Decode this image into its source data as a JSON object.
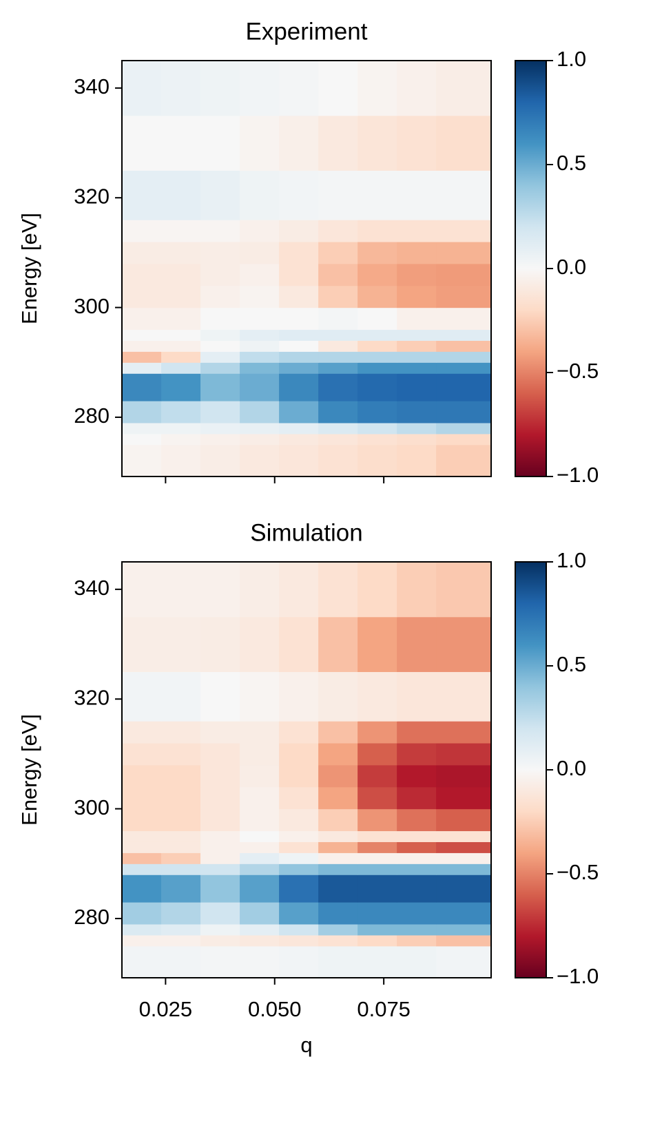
{
  "chart_data": [
    {
      "type": "heatmap",
      "title": "Experiment",
      "ylabel": "Energy [eV]",
      "xlim": [
        0.015,
        0.0996
      ],
      "ylim": [
        269.2,
        345
      ],
      "xticks": [
        0.025,
        0.05,
        0.075
      ],
      "show_xticklabels": false,
      "yticks": [
        280,
        300,
        320,
        340
      ],
      "x_bins": [
        0.015,
        0.024,
        0.033,
        0.042,
        0.051,
        0.06,
        0.069,
        0.078,
        0.087,
        0.0996
      ],
      "y_bins": [
        269.2,
        275,
        277,
        279,
        283,
        288,
        290,
        292,
        294,
        296,
        300,
        304,
        308,
        312,
        316,
        325,
        335,
        345
      ],
      "values": [
        [
          -0.03,
          -0.05,
          -0.07,
          -0.1,
          -0.12,
          -0.15,
          -0.18,
          -0.2,
          -0.25
        ],
        [
          0,
          -0.03,
          -0.05,
          -0.07,
          -0.1,
          -0.12,
          -0.15,
          -0.17,
          -0.2
        ],
        [
          0.05,
          0.05,
          0.07,
          0.08,
          0.1,
          0.15,
          0.2,
          0.25,
          0.3
        ],
        [
          0.3,
          0.25,
          0.2,
          0.3,
          0.5,
          0.65,
          0.7,
          0.72,
          0.72
        ],
        [
          0.65,
          0.6,
          0.45,
          0.5,
          0.65,
          0.75,
          0.78,
          0.8,
          0.8
        ],
        [
          0.1,
          0.2,
          0.3,
          0.45,
          0.5,
          0.55,
          0.6,
          0.6,
          0.6
        ],
        [
          -0.3,
          -0.2,
          0.1,
          0.25,
          0.3,
          0.3,
          0.3,
          0.3,
          0.3
        ],
        [
          -0.05,
          -0.05,
          0,
          0.05,
          0,
          -0.1,
          -0.2,
          -0.25,
          -0.3
        ],
        [
          0,
          0,
          0.05,
          0.1,
          0.12,
          0.12,
          0.12,
          0.12,
          0.12
        ],
        [
          -0.05,
          -0.05,
          0,
          0,
          0,
          0.02,
          0,
          -0.05,
          -0.05
        ],
        [
          -0.1,
          -0.1,
          -0.05,
          -0.03,
          -0.1,
          -0.25,
          -0.35,
          -0.4,
          -0.42
        ],
        [
          -0.1,
          -0.1,
          -0.07,
          -0.05,
          -0.15,
          -0.3,
          -0.38,
          -0.42,
          -0.43
        ],
        [
          -0.08,
          -0.08,
          -0.07,
          -0.08,
          -0.15,
          -0.25,
          -0.33,
          -0.35,
          -0.35
        ],
        [
          -0.02,
          -0.02,
          -0.02,
          -0.05,
          -0.08,
          -0.12,
          -0.15,
          -0.15,
          -0.15
        ],
        [
          0.1,
          0.1,
          0.08,
          0.05,
          0.03,
          0.02,
          0.02,
          0.02,
          0.02
        ],
        [
          0,
          0,
          0,
          -0.03,
          -0.06,
          -0.1,
          -0.13,
          -0.15,
          -0.17
        ],
        [
          0.07,
          0.06,
          0.05,
          0.03,
          0.02,
          0,
          -0.03,
          -0.05,
          -0.07
        ]
      ],
      "clim": [
        -1,
        1
      ],
      "cticks": [
        {
          "value": -1,
          "label": "−1.0"
        },
        {
          "value": -0.5,
          "label": "−0.5"
        },
        {
          "value": 0,
          "label": "0.0"
        },
        {
          "value": 0.5,
          "label": "0.5"
        },
        {
          "value": 1,
          "label": "1.0"
        }
      ],
      "colormap": [
        "#67001f",
        "#b2182b",
        "#d6604d",
        "#f4a582",
        "#fddbc7",
        "#f7f7f7",
        "#d1e5f0",
        "#92c5de",
        "#4393c3",
        "#2166ac",
        "#053061"
      ]
    },
    {
      "type": "heatmap",
      "title": "Simulation",
      "ylabel": "Energy [eV]",
      "xlabel": "q",
      "xlim": [
        0.015,
        0.0996
      ],
      "ylim": [
        269.2,
        345
      ],
      "xticks": [
        {
          "value": 0.025,
          "label": "0.025"
        },
        {
          "value": 0.05,
          "label": "0.050"
        },
        {
          "value": 0.075,
          "label": "0.075"
        }
      ],
      "show_xticklabels": true,
      "yticks": [
        280,
        300,
        320,
        340
      ],
      "x_bins": [
        0.015,
        0.024,
        0.033,
        0.042,
        0.051,
        0.06,
        0.069,
        0.078,
        0.087,
        0.0996
      ],
      "y_bins": [
        269.2,
        275,
        277,
        279,
        283,
        288,
        290,
        292,
        294,
        296,
        300,
        304,
        308,
        312,
        316,
        325,
        335,
        345
      ],
      "values": [
        [
          0.03,
          0.03,
          0.02,
          0.02,
          0.03,
          0.05,
          0.05,
          0.05,
          0.03
        ],
        [
          -0.05,
          -0.05,
          -0.08,
          -0.1,
          -0.12,
          -0.15,
          -0.2,
          -0.25,
          -0.3
        ],
        [
          0.15,
          0.12,
          0.05,
          0.1,
          0.2,
          0.35,
          0.45,
          0.45,
          0.45
        ],
        [
          0.35,
          0.3,
          0.2,
          0.35,
          0.55,
          0.65,
          0.65,
          0.65,
          0.65
        ],
        [
          0.6,
          0.55,
          0.4,
          0.55,
          0.75,
          0.85,
          0.85,
          0.85,
          0.85
        ],
        [
          0.2,
          0.2,
          0.2,
          0.3,
          0.4,
          0.45,
          0.45,
          0.45,
          0.45
        ],
        [
          -0.3,
          -0.25,
          -0.05,
          0.1,
          0.05,
          -0.05,
          -0.05,
          -0.05,
          -0.05
        ],
        [
          -0.1,
          -0.1,
          -0.05,
          -0.05,
          -0.15,
          -0.35,
          -0.5,
          -0.6,
          -0.65
        ],
        [
          -0.1,
          -0.1,
          -0.05,
          0,
          -0.05,
          -0.1,
          -0.15,
          -0.15,
          -0.15
        ],
        [
          -0.2,
          -0.2,
          -0.12,
          -0.05,
          -0.1,
          -0.25,
          -0.45,
          -0.55,
          -0.6
        ],
        [
          -0.2,
          -0.2,
          -0.12,
          -0.05,
          -0.15,
          -0.4,
          -0.65,
          -0.75,
          -0.8
        ],
        [
          -0.2,
          -0.2,
          -0.12,
          -0.07,
          -0.2,
          -0.45,
          -0.7,
          -0.8,
          -0.82
        ],
        [
          -0.15,
          -0.15,
          -0.12,
          -0.08,
          -0.2,
          -0.4,
          -0.6,
          -0.7,
          -0.72
        ],
        [
          -0.1,
          -0.1,
          -0.08,
          -0.08,
          -0.15,
          -0.3,
          -0.45,
          -0.55,
          -0.55
        ],
        [
          0.03,
          0.03,
          0,
          -0.02,
          -0.05,
          -0.08,
          -0.1,
          -0.12,
          -0.12
        ],
        [
          -0.07,
          -0.07,
          -0.08,
          -0.1,
          -0.15,
          -0.3,
          -0.4,
          -0.45,
          -0.45
        ],
        [
          -0.05,
          -0.05,
          -0.05,
          -0.07,
          -0.1,
          -0.15,
          -0.2,
          -0.25,
          -0.27
        ]
      ],
      "clim": [
        -1,
        1
      ],
      "cticks": [
        {
          "value": -1,
          "label": "−1.0"
        },
        {
          "value": -0.5,
          "label": "−0.5"
        },
        {
          "value": 0,
          "label": "0.0"
        },
        {
          "value": 0.5,
          "label": "0.5"
        },
        {
          "value": 1,
          "label": "1.0"
        }
      ],
      "colormap": [
        "#67001f",
        "#b2182b",
        "#d6604d",
        "#f4a582",
        "#fddbc7",
        "#f7f7f7",
        "#d1e5f0",
        "#92c5de",
        "#4393c3",
        "#2166ac",
        "#053061"
      ]
    }
  ]
}
